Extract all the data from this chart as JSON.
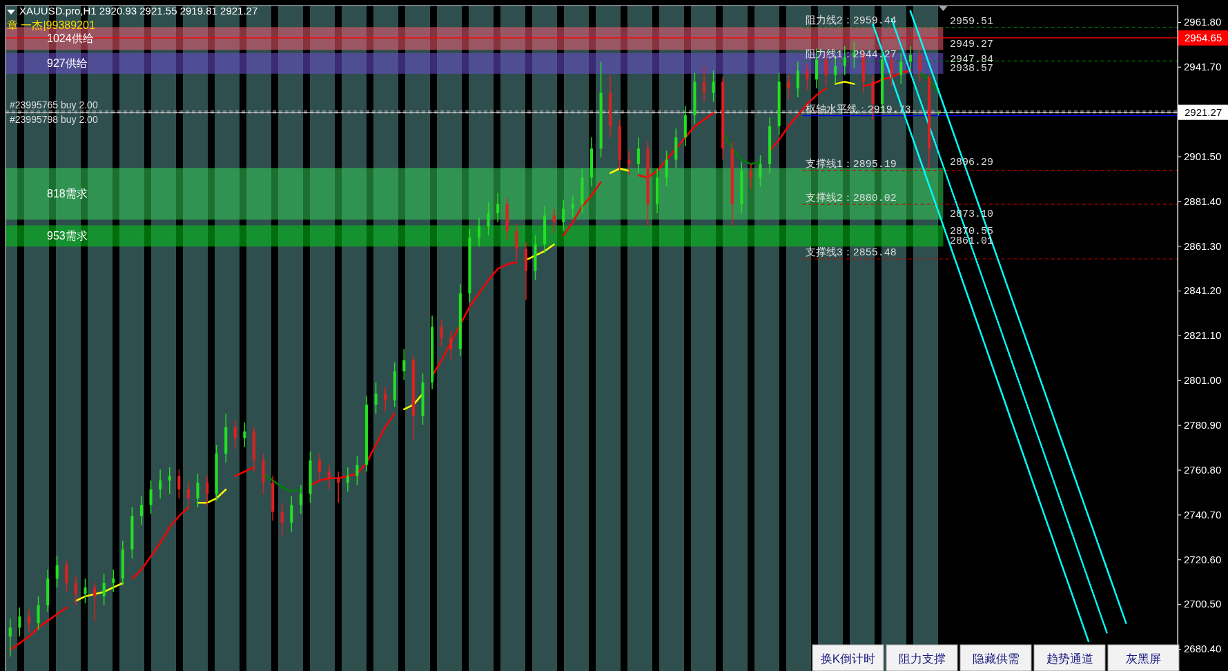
{
  "chart_data": {
    "type": "candlestick",
    "title": "XAUUSD.pro,H1  2920.93 2921.55 2919.81 2921.27",
    "subtitle": "章 一杰|99389201",
    "categories": [
      null,
      null,
      null,
      null,
      null,
      null,
      null,
      null,
      null,
      null,
      null,
      null,
      null,
      null,
      null,
      null,
      null,
      null,
      null,
      null,
      null,
      null,
      null,
      null,
      null,
      null,
      null,
      null,
      null,
      null,
      null,
      null,
      null,
      null,
      null,
      null,
      null,
      null,
      null,
      null,
      null,
      null,
      null,
      null,
      null,
      null,
      null,
      null,
      null,
      null,
      null,
      null,
      null,
      null,
      null,
      null,
      null,
      null,
      null,
      null,
      null,
      null,
      null,
      null,
      null,
      null,
      null,
      null,
      null,
      null,
      null,
      null,
      null,
      null,
      null,
      null,
      null,
      null,
      null,
      null,
      null,
      null,
      null,
      null,
      null,
      null,
      null,
      null,
      null,
      null,
      null,
      null,
      null,
      null,
      null,
      null,
      null,
      null,
      null,
      null,
      null,
      null,
      null,
      null,
      null,
      null,
      null,
      null,
      null,
      null,
      null,
      null,
      null,
      null,
      null,
      null,
      null,
      null,
      null,
      null,
      null,
      null,
      null,
      null,
      null
    ],
    "ohlc": [
      [
        2686,
        2694,
        2677,
        2690
      ],
      [
        2690,
        2699,
        2686,
        2695
      ],
      [
        2695,
        2698,
        2688,
        2692
      ],
      [
        2692,
        2704,
        2689,
        2700
      ],
      [
        2700,
        2716,
        2697,
        2712
      ],
      [
        2712,
        2722,
        2708,
        2718
      ],
      [
        2718,
        2720,
        2706,
        2710
      ],
      [
        2710,
        2713,
        2700,
        2705
      ],
      [
        2705,
        2712,
        2701,
        2708
      ],
      [
        2708,
        2710,
        2693,
        2704
      ],
      [
        2704,
        2714,
        2700,
        2710
      ],
      [
        2710,
        2716,
        2706,
        2712
      ],
      [
        2712,
        2729,
        2709,
        2725
      ],
      [
        2725,
        2744,
        2721,
        2740
      ],
      [
        2740,
        2749,
        2736,
        2745
      ],
      [
        2745,
        2756,
        2741,
        2752
      ],
      [
        2752,
        2761,
        2748,
        2756
      ],
      [
        2756,
        2762,
        2750,
        2758
      ],
      [
        2758,
        2761,
        2748,
        2752
      ],
      [
        2752,
        2755,
        2743,
        2748
      ],
      [
        2748,
        2759,
        2744,
        2755
      ],
      [
        2755,
        2758,
        2745,
        2750
      ],
      [
        2750,
        2772,
        2747,
        2768
      ],
      [
        2768,
        2786,
        2764,
        2780
      ],
      [
        2780,
        2783,
        2770,
        2775
      ],
      [
        2775,
        2782,
        2771,
        2778
      ],
      [
        2778,
        2780,
        2760,
        2765
      ],
      [
        2765,
        2768,
        2750,
        2755
      ],
      [
        2755,
        2758,
        2738,
        2742
      ],
      [
        2742,
        2746,
        2731,
        2737
      ],
      [
        2737,
        2749,
        2733,
        2745
      ],
      [
        2745,
        2754,
        2741,
        2750
      ],
      [
        2750,
        2769,
        2746,
        2765
      ],
      [
        2765,
        2768,
        2756,
        2760
      ],
      [
        2760,
        2763,
        2752,
        2757
      ],
      [
        2757,
        2760,
        2746,
        2755
      ],
      [
        2755,
        2762,
        2751,
        2758
      ],
      [
        2758,
        2767,
        2754,
        2763
      ],
      [
        2763,
        2794,
        2760,
        2790
      ],
      [
        2790,
        2800,
        2786,
        2795
      ],
      [
        2795,
        2798,
        2787,
        2792
      ],
      [
        2792,
        2809,
        2789,
        2805
      ],
      [
        2805,
        2815,
        2801,
        2810
      ],
      [
        2810,
        2812,
        2774,
        2785
      ],
      [
        2785,
        2804,
        2781,
        2800
      ],
      [
        2800,
        2830,
        2797,
        2825
      ],
      [
        2825,
        2828,
        2816,
        2820
      ],
      [
        2820,
        2823,
        2810,
        2815
      ],
      [
        2815,
        2844,
        2812,
        2840
      ],
      [
        2840,
        2869,
        2836,
        2865
      ],
      [
        2865,
        2874,
        2861,
        2870
      ],
      [
        2870,
        2881,
        2866,
        2876
      ],
      [
        2876,
        2885,
        2872,
        2880
      ],
      [
        2880,
        2883,
        2864,
        2868
      ],
      [
        2868,
        2871,
        2855,
        2860
      ],
      [
        2860,
        2863,
        2837,
        2850
      ],
      [
        2850,
        2866,
        2846,
        2862
      ],
      [
        2862,
        2879,
        2858,
        2875
      ],
      [
        2875,
        2878,
        2867,
        2872
      ],
      [
        2872,
        2882,
        2868,
        2878
      ],
      [
        2878,
        2884,
        2874,
        2880
      ],
      [
        2880,
        2896,
        2876,
        2892
      ],
      [
        2892,
        2910,
        2888,
        2905
      ],
      [
        2905,
        2944,
        2901,
        2930
      ],
      [
        2930,
        2938,
        2910,
        2915
      ],
      [
        2915,
        2918,
        2895,
        2900
      ],
      [
        2900,
        2904,
        2893,
        2898
      ],
      [
        2898,
        2910,
        2894,
        2905
      ],
      [
        2905,
        2908,
        2870,
        2880
      ],
      [
        2880,
        2896,
        2876,
        2892
      ],
      [
        2892,
        2904,
        2888,
        2900
      ],
      [
        2900,
        2914,
        2896,
        2910
      ],
      [
        2910,
        2924,
        2906,
        2920
      ],
      [
        2920,
        2939,
        2916,
        2935
      ],
      [
        2935,
        2942,
        2926,
        2930
      ],
      [
        2930,
        2940,
        2926,
        2935
      ],
      [
        2935,
        2937,
        2900,
        2905
      ],
      [
        2905,
        2908,
        2870,
        2880
      ],
      [
        2880,
        2899,
        2876,
        2895
      ],
      [
        2895,
        2898,
        2887,
        2892
      ],
      [
        2892,
        2902,
        2888,
        2898
      ],
      [
        2898,
        2919,
        2894,
        2915
      ],
      [
        2915,
        2939,
        2911,
        2935
      ],
      [
        2935,
        2938,
        2927,
        2932
      ],
      [
        2932,
        2944,
        2928,
        2940
      ],
      [
        2940,
        2943,
        2931,
        2936
      ],
      [
        2936,
        2950,
        2932,
        2945
      ],
      [
        2945,
        2948,
        2933,
        2938
      ],
      [
        2938,
        2946,
        2934,
        2942
      ],
      [
        2942,
        2951,
        2938,
        2946
      ],
      [
        2946,
        2953,
        2941,
        2948
      ],
      [
        2948,
        2950,
        2930,
        2935
      ],
      [
        2935,
        2938,
        2918,
        2925
      ],
      [
        2925,
        2949,
        2921,
        2945
      ],
      [
        2945,
        2948,
        2933,
        2938
      ],
      [
        2938,
        2948,
        2934,
        2944
      ],
      [
        2944,
        2951,
        2940,
        2947
      ],
      [
        2947,
        2949,
        2935,
        2940
      ],
      [
        2937,
        2938,
        2896,
        2905
      ],
      [
        2920.93,
        2921.55,
        2919.81,
        2921.27
      ],
      null,
      null,
      null,
      null,
      null,
      null,
      null,
      null,
      null,
      null,
      null,
      null,
      null,
      null,
      null,
      null,
      null,
      null,
      null,
      null,
      null,
      null,
      null,
      null,
      null
    ],
    "series": [
      {
        "type": "line",
        "color": "#ff0000",
        "values": [
          2680,
          2683,
          2686,
          2690,
          2693,
          2696,
          2699,
          null,
          null,
          null,
          null,
          null,
          null,
          2712,
          2716,
          2722,
          2728,
          2735,
          2740,
          2744,
          null,
          null,
          null,
          null,
          2758,
          2760,
          2762,
          null,
          null,
          null,
          null,
          null,
          2754,
          2756,
          2757,
          2757,
          2758,
          2759,
          2764,
          2772,
          2780,
          2786,
          null,
          null,
          null,
          2803,
          2810,
          2818,
          2826,
          2834,
          2840,
          2846,
          2851,
          2853,
          2854,
          null,
          null,
          null,
          null,
          2866,
          2872,
          2879,
          2884,
          2890,
          null,
          null,
          null,
          2893,
          2892,
          2895,
          2900,
          2905,
          2910,
          2915,
          2918,
          2921,
          null,
          null,
          null,
          null,
          null,
          2904,
          2909,
          2915,
          2920,
          2925,
          2929,
          2932,
          null,
          null,
          null,
          2933,
          2934,
          2936,
          2937,
          2939,
          2940,
          null,
          null,
          null,
          null,
          null,
          null,
          null,
          null,
          null,
          null,
          null,
          null,
          null,
          null,
          null,
          null,
          null,
          null,
          null,
          null,
          null,
          null,
          null,
          null,
          null,
          null,
          null,
          null
        ]
      },
      {
        "type": "line",
        "color": "#ffff00",
        "values": [
          null,
          null,
          null,
          null,
          null,
          null,
          null,
          2702,
          2704,
          2705,
          2706,
          2708,
          2710,
          null,
          null,
          null,
          null,
          null,
          null,
          null,
          2746,
          2746,
          2748,
          2752,
          null,
          null,
          null,
          null,
          null,
          null,
          null,
          null,
          null,
          null,
          null,
          null,
          null,
          null,
          null,
          null,
          null,
          null,
          2788,
          2790,
          2795,
          null,
          null,
          null,
          null,
          null,
          null,
          null,
          null,
          null,
          null,
          2855,
          2857,
          2859,
          2862,
          null,
          null,
          null,
          null,
          null,
          2894,
          2896,
          2895,
          null,
          null,
          null,
          null,
          null,
          null,
          null,
          null,
          null,
          null,
          null,
          null,
          null,
          null,
          null,
          null,
          null,
          null,
          null,
          null,
          null,
          2934,
          2935,
          2934,
          null,
          null,
          null,
          null,
          null,
          null,
          null,
          null,
          null,
          null,
          null,
          null,
          null,
          null,
          null,
          null,
          null,
          null,
          null,
          null,
          null,
          null,
          null,
          null,
          null,
          null,
          null,
          null,
          null,
          null,
          null,
          null,
          null,
          null
        ]
      },
      {
        "type": "line",
        "color": "#008000",
        "values": [
          null,
          null,
          null,
          null,
          null,
          null,
          null,
          null,
          null,
          null,
          null,
          null,
          null,
          null,
          null,
          null,
          null,
          null,
          null,
          null,
          null,
          null,
          null,
          null,
          null,
          null,
          null,
          2759,
          2756,
          2753,
          2751,
          2752,
          null,
          null,
          null,
          null,
          null,
          null,
          null,
          null,
          null,
          null,
          null,
          null,
          null,
          null,
          null,
          null,
          null,
          null,
          null,
          null,
          null,
          null,
          null,
          null,
          null,
          null,
          null,
          null,
          null,
          null,
          null,
          null,
          null,
          null,
          null,
          null,
          null,
          null,
          null,
          null,
          null,
          null,
          null,
          null,
          2912,
          2905,
          2900,
          2898,
          2899,
          null,
          null,
          null,
          null,
          null,
          null,
          null,
          null,
          null,
          null,
          null,
          null,
          null,
          null,
          null,
          null,
          2939,
          2936,
          2930,
          null,
          null,
          null,
          null,
          null,
          null,
          null,
          null,
          null,
          null,
          null,
          null,
          null,
          null,
          null,
          null,
          null,
          null,
          null,
          null,
          null,
          null,
          null,
          null,
          null
        ]
      },
      {
        "type": "line",
        "color": "#00ffff",
        "values": [
          null,
          null,
          null,
          null,
          null,
          null,
          null,
          null,
          null,
          null,
          null,
          null,
          null,
          null,
          null,
          null,
          null,
          null,
          null,
          null,
          null,
          null,
          null,
          null,
          null,
          null,
          null,
          null,
          null,
          null,
          null,
          null,
          null,
          null,
          null,
          null,
          null,
          null,
          null,
          null,
          null,
          null,
          null,
          null,
          null,
          null,
          null,
          null,
          null,
          null,
          null,
          null,
          null,
          null,
          null,
          null,
          null,
          null,
          null,
          null,
          null,
          null,
          null,
          null,
          null,
          null,
          null,
          null,
          null,
          null,
          null,
          null,
          null,
          null,
          null,
          null,
          null,
          null,
          null,
          null,
          null,
          null,
          null,
          null,
          null,
          null,
          null,
          null,
          null,
          null,
          null,
          null,
          2960.8,
          2948.7,
          2936.7,
          2924.6,
          2912.6,
          2900.5,
          2888.5,
          2876.5,
          2864.4,
          2852.4,
          2840.3,
          2828.3,
          2816.3,
          2804.2,
          2792.2,
          2780.1,
          2768.1,
          2756,
          2744,
          2732,
          2719.9,
          2707.9,
          2695.8,
          2683.8,
          null,
          null,
          null,
          null,
          null,
          null,
          null,
          null,
          null
        ]
      },
      {
        "type": "line",
        "color": "#00ffff",
        "line_style": "dotted",
        "values": [
          null,
          null,
          null,
          null,
          null,
          null,
          null,
          null,
          null,
          null,
          null,
          null,
          null,
          null,
          null,
          null,
          null,
          null,
          null,
          null,
          null,
          null,
          null,
          null,
          null,
          null,
          null,
          null,
          null,
          null,
          null,
          null,
          null,
          null,
          null,
          null,
          null,
          null,
          null,
          null,
          null,
          null,
          null,
          null,
          null,
          null,
          null,
          null,
          null,
          null,
          null,
          null,
          null,
          null,
          null,
          null,
          null,
          null,
          null,
          null,
          null,
          null,
          null,
          null,
          null,
          null,
          null,
          null,
          null,
          null,
          null,
          null,
          null,
          null,
          null,
          null,
          null,
          null,
          null,
          null,
          null,
          null,
          null,
          null,
          null,
          null,
          null,
          null,
          null,
          null,
          null,
          null,
          null,
          null,
          2963.2,
          2951.2,
          2939.2,
          2927.2,
          2915.2,
          2903.2,
          2891.2,
          2879.2,
          2867.2,
          2855.2,
          2843.2,
          2831.2,
          2819.2,
          2807.2,
          2795.2,
          2783.2,
          2771.2,
          2759.2,
          2747.2,
          2735.2,
          2723.2,
          2711.2,
          2699.2,
          2687.2,
          null,
          null,
          null,
          null,
          null,
          null,
          null
        ]
      },
      {
        "type": "line",
        "color": "#00ffff",
        "values": [
          null,
          null,
          null,
          null,
          null,
          null,
          null,
          null,
          null,
          null,
          null,
          null,
          null,
          null,
          null,
          null,
          null,
          null,
          null,
          null,
          null,
          null,
          null,
          null,
          null,
          null,
          null,
          null,
          null,
          null,
          null,
          null,
          null,
          null,
          null,
          null,
          null,
          null,
          null,
          null,
          null,
          null,
          null,
          null,
          null,
          null,
          null,
          null,
          null,
          null,
          null,
          null,
          null,
          null,
          null,
          null,
          null,
          null,
          null,
          null,
          null,
          null,
          null,
          null,
          null,
          null,
          null,
          null,
          null,
          null,
          null,
          null,
          null,
          null,
          null,
          null,
          null,
          null,
          null,
          null,
          null,
          null,
          null,
          null,
          null,
          null,
          null,
          null,
          null,
          null,
          null,
          null,
          null,
          null,
          null,
          null,
          2966.8,
          2954.9,
          2942.9,
          2931,
          2919,
          2907.1,
          2895.1,
          2883.2,
          2871.2,
          2859.3,
          2847.3,
          2835.4,
          2823.4,
          2811.5,
          2799.5,
          2787.6,
          2775.6,
          2763.7,
          2751.7,
          2739.8,
          2727.8,
          2715.9,
          2703.9,
          2692,
          null,
          null,
          null,
          null,
          null
        ]
      }
    ],
    "ylim": [
      2670.5,
      2969.2
    ],
    "yticks": [
      {
        "value": 2961.8,
        "label": "2961.80"
      },
      {
        "value": 2941.7,
        "label": "2941.70"
      },
      {
        "value": 2901.5,
        "label": "2901.50"
      },
      {
        "value": 2881.4,
        "label": "2881.40"
      },
      {
        "value": 2861.3,
        "label": "2861.30"
      },
      {
        "value": 2841.2,
        "label": "2841.20"
      },
      {
        "value": 2821.1,
        "label": "2821.10"
      },
      {
        "value": 2801,
        "label": "2801.00"
      },
      {
        "value": 2780.9,
        "label": "2780.90"
      },
      {
        "value": 2760.8,
        "label": "2760.80"
      },
      {
        "value": 2740.7,
        "label": "2740.70"
      },
      {
        "value": 2720.6,
        "label": "2720.60"
      },
      {
        "value": 2700.5,
        "label": "2700.50"
      },
      {
        "value": 2680.4,
        "label": "2680.40"
      }
    ],
    "tick_labels": "y",
    "bands": [
      {
        "axis": "y",
        "from": 2949.27,
        "to": 2959.51,
        "label": "1024供给",
        "color": "#f25c73"
      },
      {
        "axis": "y",
        "from": 2938.57,
        "to": 2947.84,
        "label": "927供给",
        "color": "#6a4fd0"
      },
      {
        "axis": "y",
        "from": 2873.1,
        "to": 2896.29,
        "label": "818需求",
        "color": "#33cc55"
      },
      {
        "axis": "y",
        "from": 2861.01,
        "to": 2870.55,
        "label": "953需求",
        "color": "#00c818"
      }
    ],
    "ref_lines": [
      {
        "axis": "y",
        "value": 2954.65,
        "label": "2954.65",
        "color": "#ff0000"
      },
      {
        "axis": "y",
        "value": 2921.27,
        "label": "2921.27",
        "color": "#c0c0c0"
      },
      {
        "axis": "y",
        "value": 2921.8,
        "label": "#23995765 buy 2.00",
        "color": "#a0a0a0",
        "line_style": "dashed"
      },
      {
        "axis": "y",
        "value": 2921,
        "label": "#23995798 buy 2.00",
        "color": "#a0a0a0",
        "line_style": "dashed"
      },
      {
        "axis": "y",
        "value": 2919.73,
        "label": "枢轴水平线：2919.73",
        "color": "#0000ff"
      },
      {
        "axis": "y",
        "value": 2959.44,
        "label": "阻力线2：2959.44",
        "color": "#008000",
        "line_style": "dashed"
      },
      {
        "axis": "y",
        "value": 2944.27,
        "label": "阻力线1：2944.27",
        "color": "#008000",
        "line_style": "dashed"
      },
      {
        "axis": "y",
        "value": 2895.19,
        "label": "支撑线1：2895.19",
        "color": "#cc0000",
        "line_style": "dashed"
      },
      {
        "axis": "y",
        "value": 2880.02,
        "label": "支撑线2：2880.02",
        "color": "#cc0000",
        "line_style": "dashed"
      },
      {
        "axis": "y",
        "value": 2855.48,
        "label": "支撑线3：2855.48",
        "color": "#cc0000",
        "line_style": "dashed"
      }
    ],
    "annotations": [
      "2959.51",
      "2949.27",
      "2947.84",
      "2938.57",
      "2896.29",
      "2873.10",
      "2870.55",
      "2861.01",
      "换K倒计时",
      "阻力支撑",
      "隐藏供需",
      "趋势通道",
      "灰黑屏"
    ]
  }
}
